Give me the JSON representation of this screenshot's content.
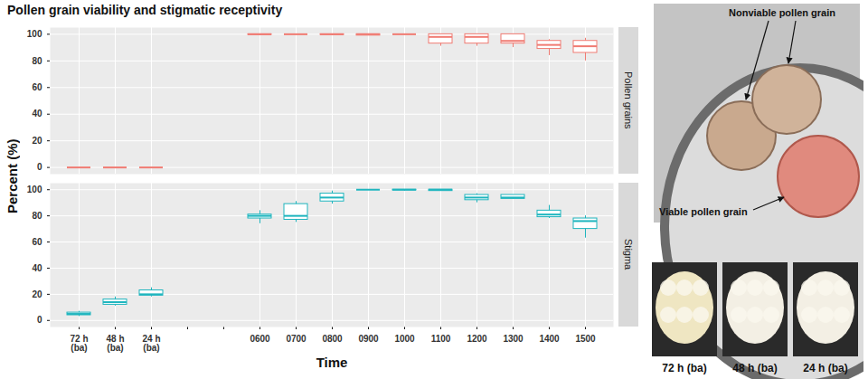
{
  "chart_data": {
    "type": "box",
    "title": "Pollen grain viability and stigmatic receptivity",
    "x_label": "Time",
    "y_label": "Percent (%)",
    "categories": [
      "72 h\n(ba)",
      "48 h\n(ba)",
      "24 h\n(ba)",
      null,
      null,
      "0600",
      "0700",
      "0800",
      "0900",
      "1000",
      "1100",
      "1200",
      "1300",
      "1400",
      "1500"
    ],
    "ylim": [
      -5,
      105
    ],
    "yticks": [
      0,
      20,
      40,
      60,
      80,
      100
    ],
    "grid": true,
    "series": [
      {
        "name": "Pollen grains",
        "color": "#F07B72",
        "min": [
          0,
          0,
          0,
          null,
          null,
          99,
          99.5,
          99,
          99,
          99.5,
          91,
          91,
          90,
          84,
          80
        ],
        "q1": [
          0,
          0,
          0,
          null,
          null,
          99.5,
          100,
          99.5,
          99,
          100,
          93,
          93,
          93,
          89,
          86
        ],
        "median": [
          0,
          0,
          0,
          null,
          null,
          100,
          100,
          100,
          100,
          100,
          98,
          98,
          95,
          92,
          91
        ],
        "q3": [
          0,
          0,
          0,
          null,
          null,
          100,
          100,
          100,
          100,
          100,
          100,
          100,
          100,
          95,
          95
        ],
        "max": [
          0,
          0,
          0,
          null,
          null,
          100,
          100,
          100,
          100,
          100,
          100,
          100,
          100,
          96,
          97
        ]
      },
      {
        "name": "Stigma",
        "color": "#1FB5BE",
        "min": [
          3,
          11,
          18,
          null,
          null,
          74,
          75,
          89,
          99.5,
          99,
          99,
          90,
          93,
          78,
          63
        ],
        "q1": [
          4,
          12,
          19,
          null,
          null,
          78,
          77,
          91,
          100,
          99.5,
          99,
          92,
          93,
          79,
          70
        ],
        "median": [
          5,
          14,
          20,
          null,
          null,
          80,
          80,
          94,
          100,
          100,
          100,
          94,
          94,
          81,
          76
        ],
        "q3": [
          6,
          16,
          23,
          null,
          null,
          81,
          89,
          97,
          100,
          100,
          100,
          96,
          96,
          84,
          78
        ],
        "max": [
          7,
          18,
          25,
          null,
          null,
          84,
          91,
          99,
          100,
          100,
          100,
          97,
          96,
          88,
          80
        ]
      }
    ]
  },
  "images": {
    "pollen_photo_labels": [
      "Nonviable pollen grain",
      "Viable pollen grain"
    ],
    "stigma_photo_captions": [
      "72 h (ba)",
      "48 h (ba)",
      "24 h (ba)"
    ]
  }
}
